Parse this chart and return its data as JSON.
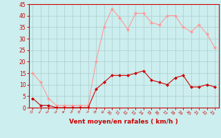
{
  "x": [
    0,
    1,
    2,
    3,
    4,
    5,
    6,
    7,
    8,
    9,
    10,
    11,
    12,
    13,
    14,
    15,
    16,
    17,
    18,
    19,
    20,
    21,
    22,
    23
  ],
  "wind_avg": [
    4,
    1,
    1,
    0,
    0,
    0,
    0,
    0,
    8,
    11,
    14,
    14,
    14,
    15,
    16,
    12,
    11,
    10,
    13,
    14,
    9,
    9,
    10,
    9
  ],
  "wind_gust": [
    15,
    11,
    4,
    1,
    1,
    1,
    1,
    1,
    20,
    35,
    43,
    39,
    34,
    41,
    41,
    37,
    36,
    40,
    40,
    35,
    33,
    36,
    32,
    26
  ],
  "ylim": [
    0,
    45
  ],
  "yticks": [
    0,
    5,
    10,
    15,
    20,
    25,
    30,
    35,
    40,
    45
  ],
  "xlabel": "Vent moyen/en rafales ( km/h )",
  "color_avg": "#cc0000",
  "color_gust": "#ff9999",
  "bg_color": "#cceeee",
  "grid_color": "#aacccc",
  "tick_color": "#cc0000",
  "label_color": "#cc0000"
}
